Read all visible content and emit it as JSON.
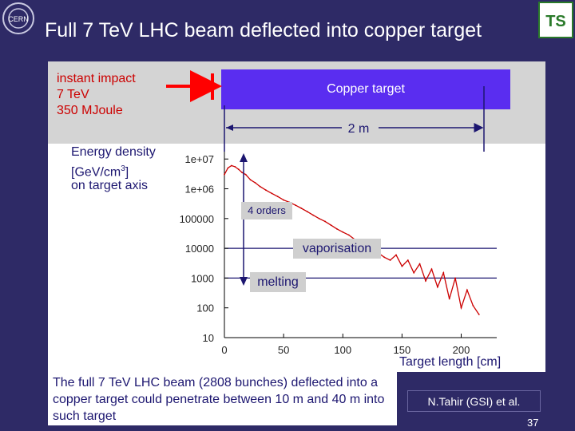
{
  "title": "Full 7 TeV LHC beam deflected into copper target",
  "logos": {
    "left": "CERN",
    "right": "TS"
  },
  "impact": {
    "line1": "instant impact",
    "line2": "7 TeV",
    "line3": "350 MJoule"
  },
  "target_label": "Copper target",
  "length_label": "2 m",
  "ylabel": {
    "line1": "Energy density",
    "line2": "[GeV/cm",
    "sup": "3",
    "line2_end": "]",
    "line3": "on target axis"
  },
  "annotations": {
    "orders": "4 orders",
    "vaporisation": "vaporisation",
    "melting": "melting"
  },
  "xlabel": "Target length [cm]",
  "note": "The full 7 TeV LHC beam (2808 bunches) deflected into a copper target could penetrate between 10 m and 40 m into such target",
  "citation": "N.Tahir (GSI) et al.",
  "page_number": "37",
  "colors": {
    "background": "#2e2a66",
    "target": "#5a2df0",
    "curve": "#cc0000",
    "arrow": "#ff0000",
    "text_dark": "#1c1670"
  },
  "chart_data": {
    "type": "line",
    "x_ticks": [
      "0",
      "50",
      "100",
      "150",
      "200"
    ],
    "y_ticks": [
      "10",
      "100",
      "1000",
      "10000",
      "100000",
      "1e+06",
      "1e+07"
    ],
    "xlim": [
      0,
      230
    ],
    "ylim": [
      10,
      20000000
    ],
    "y_scale": "log",
    "reference_lines": [
      10000,
      1000
    ],
    "series": [
      {
        "x": [
          0,
          3,
          6,
          9,
          12,
          15,
          18,
          22,
          26,
          30,
          35,
          40,
          45,
          50,
          55,
          60,
          65,
          70,
          75,
          80,
          85,
          90,
          95,
          100,
          105,
          110,
          115,
          120,
          125,
          130,
          135,
          140,
          145,
          150,
          155,
          160,
          165,
          170,
          175,
          180,
          185,
          190,
          195,
          200,
          205,
          210,
          215
        ],
        "y": [
          3000000,
          5000000,
          6000000,
          5500000,
          4500000,
          3500000,
          3000000,
          2000000,
          1600000,
          1200000,
          900000,
          700000,
          550000,
          420000,
          350000,
          280000,
          220000,
          170000,
          130000,
          100000,
          80000,
          60000,
          45000,
          35000,
          28000,
          20000,
          15000,
          12000,
          9000,
          7000,
          5000,
          4000,
          6000,
          2500,
          4000,
          1500,
          3000,
          800,
          2000,
          500,
          1500,
          200,
          1000,
          100,
          400,
          120,
          60
        ]
      }
    ]
  }
}
